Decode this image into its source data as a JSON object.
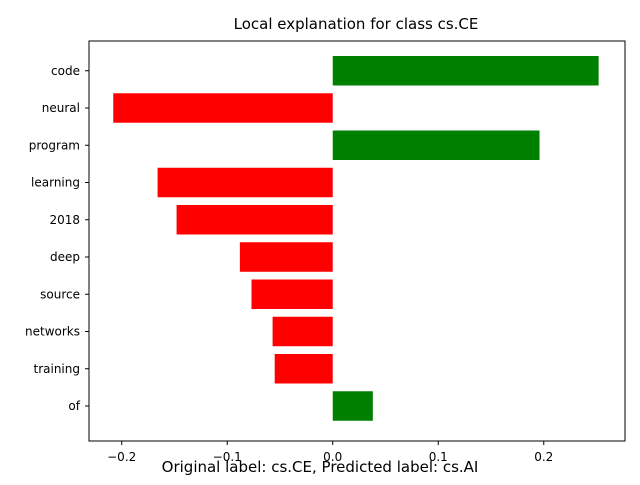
{
  "chart_data": {
    "type": "bar",
    "orientation": "horizontal",
    "title": "Local explanation for class cs.CE",
    "categories": [
      "code",
      "neural",
      "program",
      "learning",
      "2018",
      "deep",
      "source",
      "networks",
      "training",
      "of"
    ],
    "values": [
      0.252,
      -0.208,
      0.196,
      -0.166,
      -0.148,
      -0.088,
      -0.077,
      -0.057,
      -0.055,
      0.038
    ],
    "xlim": [
      -0.231,
      0.277
    ],
    "x_ticks": [
      -0.2,
      -0.1,
      0.0,
      0.1,
      0.2
    ],
    "x_tick_labels": [
      "−0.2",
      "−0.1",
      "0.0",
      "0.1",
      "0.2"
    ],
    "xlabel": "",
    "ylabel": "",
    "grid": false,
    "positive_color": "#008000",
    "negative_color": "#ff0000"
  },
  "caption": "Original label: cs.CE, Predicted label: cs.AI"
}
